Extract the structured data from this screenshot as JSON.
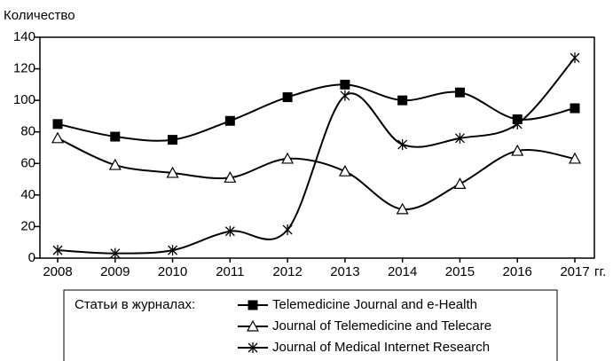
{
  "chart_data": {
    "type": "line",
    "y_label": "Количество",
    "x_label": "гг.",
    "legend_title": "Статьи в журналах:",
    "categories": [
      "2008",
      "2009",
      "2010",
      "2011",
      "2012",
      "2013",
      "2014",
      "2015",
      "2016",
      "2017"
    ],
    "series": [
      {
        "name": "Telemedicine Journal and e-Health",
        "color": "#000000",
        "marker": "square",
        "values": [
          85,
          77,
          75,
          87,
          102,
          110,
          100,
          105,
          88,
          95
        ]
      },
      {
        "name": "Journal of Telemedicine and Telecare",
        "color": "#000000",
        "marker": "triangle",
        "values": [
          76,
          59,
          54,
          51,
          63,
          55,
          31,
          47,
          68,
          63
        ]
      },
      {
        "name": "Journal of Medical Internet Research",
        "color": "#000000",
        "marker": "asterisk",
        "values": [
          5,
          3,
          5,
          17,
          18,
          103,
          72,
          76,
          85,
          127
        ]
      }
    ],
    "ylim": [
      0,
      140
    ],
    "yticks": [
      0,
      20,
      40,
      60,
      80,
      100,
      120,
      140
    ],
    "smooth": true
  }
}
